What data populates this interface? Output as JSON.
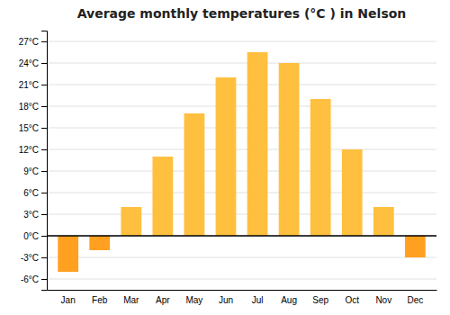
{
  "chart_data": {
    "type": "bar",
    "title": "Average monthly temperatures (°C ) in Nelson",
    "categories": [
      "Jan",
      "Feb",
      "Mar",
      "Apr",
      "May",
      "Jun",
      "Jul",
      "Aug",
      "Sep",
      "Oct",
      "Nov",
      "Dec"
    ],
    "values": [
      -5.0,
      -2.0,
      4.0,
      11.0,
      17.0,
      22.0,
      25.5,
      24.0,
      19.0,
      12.0,
      4.0,
      -3.0
    ],
    "colors": [
      "#FFA020",
      "#FFA020",
      "#FFC040",
      "#FFC040",
      "#FFC040",
      "#FFC040",
      "#FFC040",
      "#FFC040",
      "#FFC040",
      "#FFC040",
      "#FFC040",
      "#FFA020"
    ],
    "ylim": [
      -7.5,
      28.5
    ],
    "yticks": [
      {
        "value": -6,
        "label": "-6°C"
      },
      {
        "value": -3,
        "label": "-3°C"
      },
      {
        "value": 0,
        "label": "0°C"
      },
      {
        "value": 3,
        "label": "3°C"
      },
      {
        "value": 6,
        "label": "6°C"
      },
      {
        "value": 9,
        "label": "9°C"
      },
      {
        "value": 12,
        "label": "12°C"
      },
      {
        "value": 15,
        "label": "15°C"
      },
      {
        "value": 18,
        "label": "18°C"
      },
      {
        "value": 21,
        "label": "21°C"
      },
      {
        "value": 24,
        "label": "24°C"
      },
      {
        "value": 27,
        "label": "27°C"
      }
    ],
    "grid": true
  }
}
